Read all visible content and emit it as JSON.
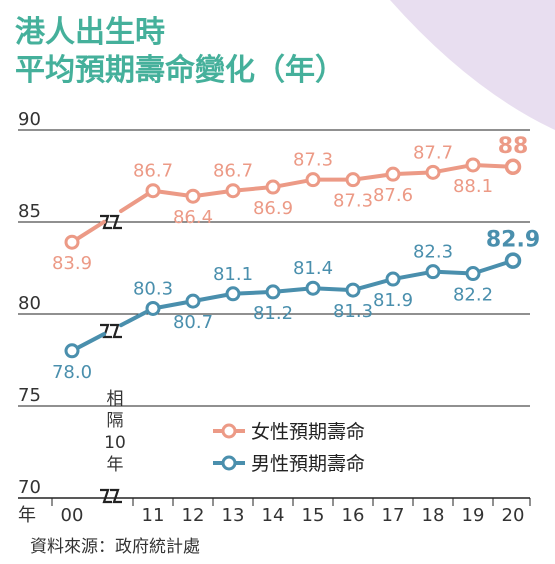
{
  "chart_data": {
    "type": "line",
    "title_lines": [
      "港人出生時",
      "平均預期壽命變化（年）"
    ],
    "ylim": [
      70,
      90
    ],
    "y_ticks": [
      "70",
      "75",
      "80",
      "85",
      "90"
    ],
    "x_unit_label": "年",
    "x_categories": [
      "00",
      "11",
      "12",
      "13",
      "14",
      "15",
      "16",
      "17",
      "18",
      "19",
      "20"
    ],
    "axis_break_note": [
      "相",
      "隔",
      "10",
      "年"
    ],
    "series": [
      {
        "name": "女性預期壽命",
        "color": "#ec9a86",
        "values": [
          83.9,
          86.7,
          86.4,
          86.7,
          86.9,
          87.3,
          87.3,
          87.6,
          87.7,
          88.1,
          88.0
        ],
        "labels": [
          "83.9",
          "86.7",
          "86.4",
          "86.7",
          "86.9",
          "87.3",
          "87.3",
          "87.6",
          "87.7",
          "88.1",
          "88"
        ]
      },
      {
        "name": "男性預期壽命",
        "color": "#4a8fad",
        "values": [
          78.0,
          80.3,
          80.7,
          81.1,
          81.2,
          81.4,
          81.3,
          81.9,
          82.3,
          82.2,
          82.9
        ],
        "labels": [
          "78.0",
          "80.3",
          "80.7",
          "81.1",
          "81.2",
          "81.4",
          "81.3",
          "81.9",
          "82.3",
          "82.2",
          "82.9"
        ]
      }
    ],
    "source": "資料來源：政府統計處"
  },
  "colors": {
    "title": "#45b09b",
    "decoration": "#e8def0",
    "axis_text": "#333333",
    "grid": "#222222"
  }
}
